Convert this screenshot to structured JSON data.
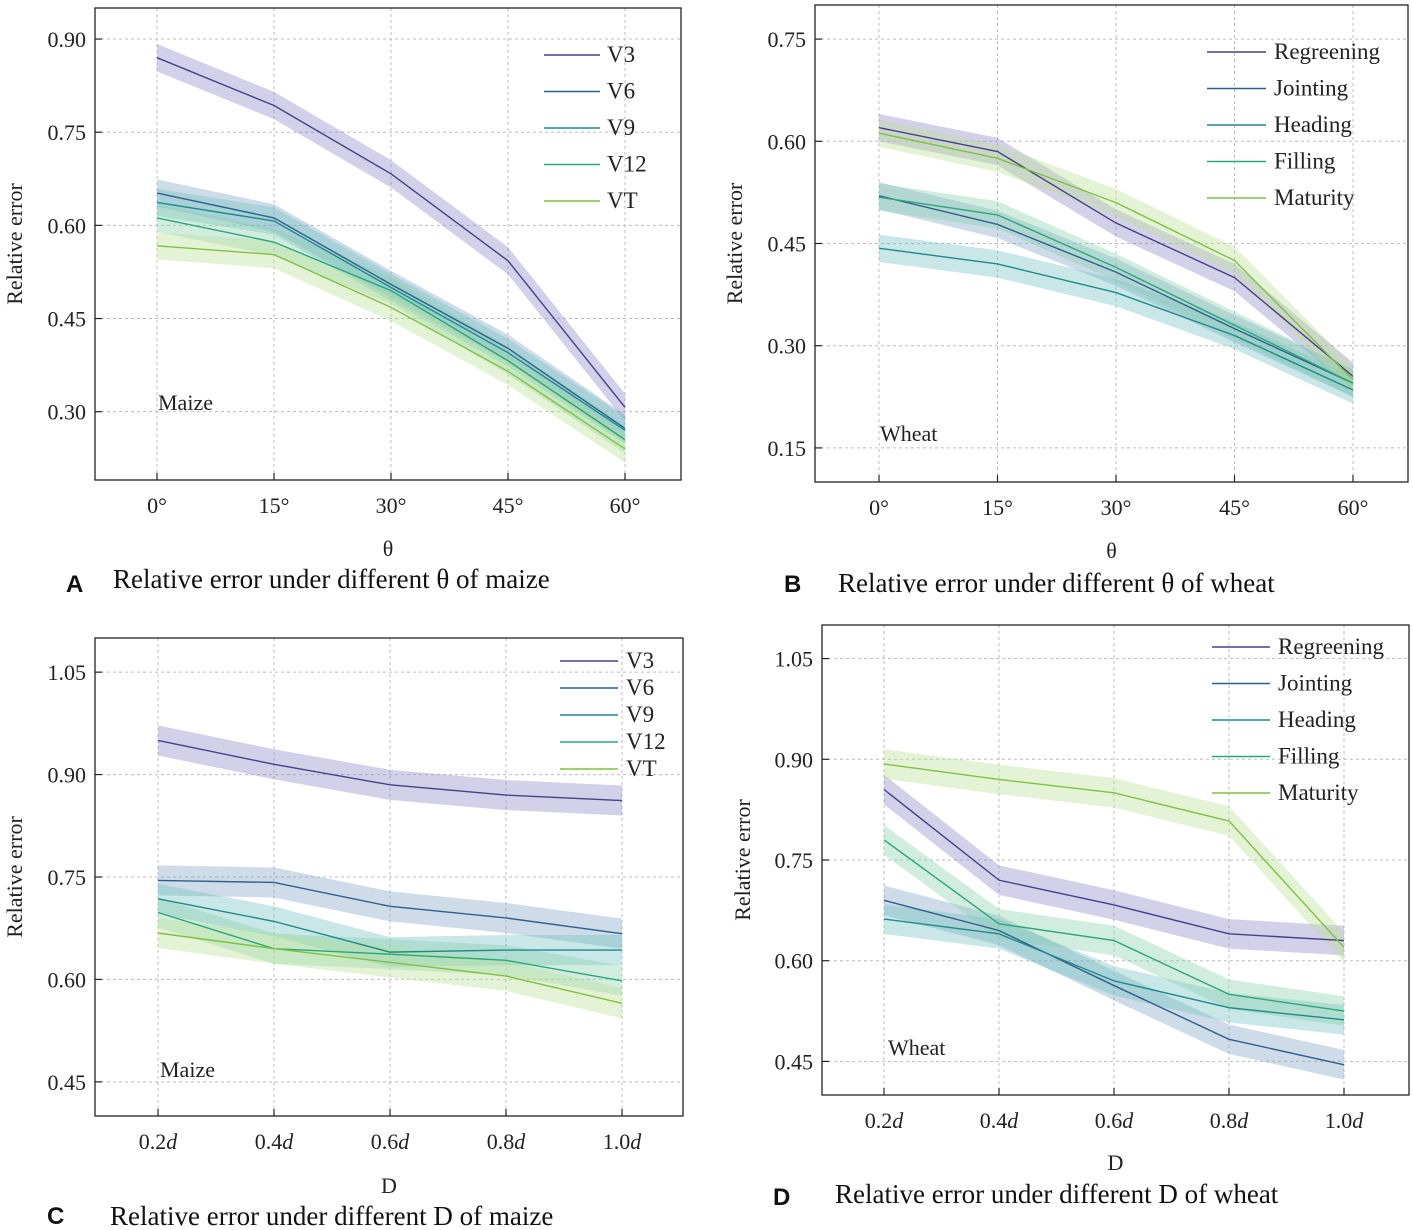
{
  "chart_data": [
    {
      "type": "line",
      "panel": "A",
      "caption": "Relative error under different θ of maize",
      "xlabel": "θ",
      "ylabel": "Relative error",
      "annotation": "Maize",
      "categories": [
        "0°",
        "15°",
        "30°",
        "45°",
        "60°"
      ],
      "ylim": [
        0.19,
        0.95
      ],
      "yticks": [
        0.3,
        0.45,
        0.6,
        0.75,
        0.9
      ],
      "ytick_labels": [
        "0.30",
        "0.45",
        "0.60",
        "0.75",
        "0.90"
      ],
      "grid": true,
      "legend_position": "top-right",
      "band": 0.022,
      "series": [
        {
          "name": "V3",
          "color": "#4a3f8a",
          "band_color": "#8b84c4",
          "values": [
            0.87,
            0.793,
            0.683,
            0.543,
            0.307
          ]
        },
        {
          "name": "V6",
          "color": "#2f5f8f",
          "band_color": "#7ea3c4",
          "values": [
            0.652,
            0.612,
            0.505,
            0.402,
            0.273
          ]
        },
        {
          "name": "V9",
          "color": "#1f8a8a",
          "band_color": "#6fc0bd",
          "values": [
            0.637,
            0.607,
            0.5,
            0.395,
            0.27
          ]
        },
        {
          "name": "V12",
          "color": "#2aa77a",
          "band_color": "#86d0ad",
          "values": [
            0.612,
            0.573,
            0.495,
            0.382,
            0.255
          ]
        },
        {
          "name": "VT",
          "color": "#7fc241",
          "band_color": "#b7df92",
          "values": [
            0.567,
            0.553,
            0.468,
            0.365,
            0.24
          ]
        }
      ]
    },
    {
      "type": "line",
      "panel": "B",
      "caption": "Relative error under different θ of wheat",
      "xlabel": "θ",
      "ylabel": "Relative error",
      "annotation": "Wheat",
      "categories": [
        "0°",
        "15°",
        "30°",
        "45°",
        "60°"
      ],
      "ylim": [
        0.1,
        0.8
      ],
      "yticks": [
        0.15,
        0.3,
        0.45,
        0.6,
        0.75
      ],
      "ytick_labels": [
        "0.15",
        "0.30",
        "0.45",
        "0.60",
        "0.75"
      ],
      "grid": true,
      "legend_position": "top-right",
      "band": 0.02,
      "series": [
        {
          "name": "Regreening",
          "color": "#4a3f8a",
          "band_color": "#8b84c4",
          "values": [
            0.62,
            0.585,
            0.48,
            0.4,
            0.255
          ]
        },
        {
          "name": "Jointing",
          "color": "#2f5f8f",
          "band_color": "#7ea3c4",
          "values": [
            0.52,
            0.478,
            0.408,
            0.325,
            0.245
          ]
        },
        {
          "name": "Heading",
          "color": "#1f8a8a",
          "band_color": "#6fc0bd",
          "values": [
            0.443,
            0.42,
            0.378,
            0.315,
            0.235
          ]
        },
        {
          "name": "Filling",
          "color": "#2aa77a",
          "band_color": "#86d0ad",
          "values": [
            0.518,
            0.492,
            0.415,
            0.33,
            0.245
          ]
        },
        {
          "name": "Maturity",
          "color": "#7fc241",
          "band_color": "#b7df92",
          "values": [
            0.612,
            0.575,
            0.51,
            0.425,
            0.25
          ]
        }
      ]
    },
    {
      "type": "line",
      "panel": "C",
      "caption": "Relative error under different D of maize",
      "xlabel": "D",
      "ylabel": "Relative error",
      "annotation": "Maize",
      "categories": [
        "0.2d",
        "0.4d",
        "0.6d",
        "0.8d",
        "1.0d"
      ],
      "ylim": [
        0.4,
        1.1
      ],
      "yticks": [
        0.45,
        0.6,
        0.75,
        0.9,
        1.05
      ],
      "ytick_labels": [
        "0.45",
        "0.60",
        "0.75",
        "0.90",
        "1.05"
      ],
      "grid": true,
      "legend_position": "top-right",
      "band": 0.022,
      "series": [
        {
          "name": "V3",
          "color": "#4a3f8a",
          "band_color": "#8b84c4",
          "values": [
            0.95,
            0.915,
            0.885,
            0.87,
            0.862
          ]
        },
        {
          "name": "V6",
          "color": "#2f5f8f",
          "band_color": "#7ea3c4",
          "values": [
            0.745,
            0.742,
            0.707,
            0.69,
            0.667
          ]
        },
        {
          "name": "V9",
          "color": "#1f8a8a",
          "band_color": "#6fc0bd",
          "values": [
            0.718,
            0.685,
            0.64,
            0.643,
            0.643
          ]
        },
        {
          "name": "V12",
          "color": "#2aa77a",
          "band_color": "#86d0ad",
          "values": [
            0.698,
            0.645,
            0.637,
            0.628,
            0.598
          ]
        },
        {
          "name": "VT",
          "color": "#7fc241",
          "band_color": "#b7df92",
          "values": [
            0.668,
            0.645,
            0.625,
            0.605,
            0.565
          ]
        }
      ]
    },
    {
      "type": "line",
      "panel": "D",
      "caption": "Relative error under different D of wheat",
      "xlabel": "D",
      "ylabel": "Relative error",
      "annotation": "Wheat",
      "categories": [
        "0.2d",
        "0.4d",
        "0.6d",
        "0.8d",
        "1.0d"
      ],
      "ylim": [
        0.4,
        1.1
      ],
      "yticks": [
        0.45,
        0.6,
        0.75,
        0.9,
        1.05
      ],
      "ytick_labels": [
        "0.45",
        "0.60",
        "0.75",
        "0.90",
        "1.05"
      ],
      "grid": true,
      "legend_position": "top-right",
      "band": 0.022,
      "series": [
        {
          "name": "Regreening",
          "color": "#4a3f8a",
          "band_color": "#8b84c4",
          "values": [
            0.855,
            0.72,
            0.683,
            0.64,
            0.63
          ]
        },
        {
          "name": "Jointing",
          "color": "#2f5f8f",
          "band_color": "#7ea3c4",
          "values": [
            0.69,
            0.645,
            0.563,
            0.483,
            0.445
          ]
        },
        {
          "name": "Heading",
          "color": "#1f8a8a",
          "band_color": "#6fc0bd",
          "values": [
            0.662,
            0.64,
            0.57,
            0.53,
            0.512
          ]
        },
        {
          "name": "Filling",
          "color": "#2aa77a",
          "band_color": "#86d0ad",
          "values": [
            0.78,
            0.655,
            0.63,
            0.55,
            0.525
          ]
        },
        {
          "name": "Maturity",
          "color": "#7fc241",
          "band_color": "#b7df92",
          "values": [
            0.893,
            0.87,
            0.85,
            0.808,
            0.62
          ]
        }
      ]
    }
  ]
}
